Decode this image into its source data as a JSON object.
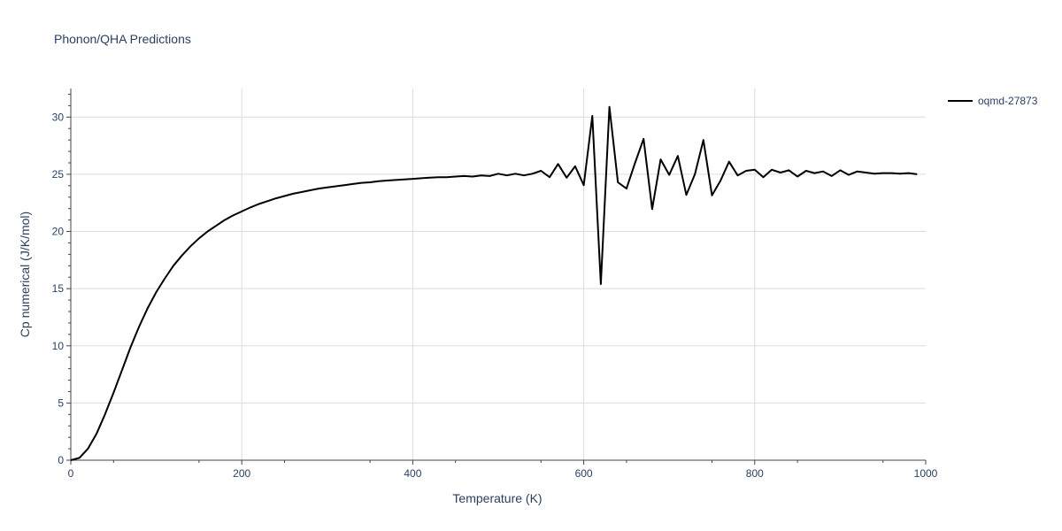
{
  "chart_data": {
    "type": "line",
    "title": "Phonon/QHA Predictions",
    "xlabel": "Temperature (K)",
    "ylabel": "Cp numerical (J/K/mol)",
    "xlim": [
      0,
      1000
    ],
    "ylim": [
      0,
      32.5
    ],
    "x_ticks": [
      0,
      200,
      400,
      600,
      800,
      1000
    ],
    "y_ticks": [
      0,
      5,
      10,
      15,
      20,
      25,
      30
    ],
    "grid": true,
    "legend_position": "top-right",
    "series": [
      {
        "name": "oqmd-27873",
        "color": "#000000",
        "x": [
          0,
          10,
          20,
          30,
          40,
          50,
          60,
          70,
          80,
          90,
          100,
          110,
          120,
          130,
          140,
          150,
          160,
          170,
          180,
          190,
          200,
          210,
          220,
          230,
          240,
          250,
          260,
          270,
          280,
          290,
          300,
          310,
          320,
          330,
          340,
          350,
          360,
          370,
          380,
          390,
          400,
          410,
          420,
          430,
          440,
          450,
          460,
          470,
          480,
          490,
          500,
          510,
          520,
          530,
          540,
          550,
          560,
          570,
          580,
          590,
          600,
          610,
          620,
          630,
          640,
          650,
          660,
          670,
          680,
          690,
          700,
          710,
          720,
          730,
          740,
          750,
          760,
          770,
          780,
          790,
          800,
          810,
          820,
          830,
          840,
          850,
          860,
          870,
          880,
          890,
          900,
          910,
          920,
          930,
          940,
          950,
          960,
          970,
          980,
          990
        ],
        "y": [
          0,
          0.2,
          1.0,
          2.3,
          4.0,
          5.9,
          7.9,
          9.9,
          11.7,
          13.3,
          14.7,
          15.9,
          17.0,
          17.9,
          18.7,
          19.4,
          20.0,
          20.5,
          21.0,
          21.4,
          21.75,
          22.1,
          22.4,
          22.65,
          22.9,
          23.1,
          23.3,
          23.45,
          23.6,
          23.75,
          23.85,
          23.95,
          24.05,
          24.15,
          24.25,
          24.3,
          24.4,
          24.45,
          24.5,
          24.55,
          24.6,
          24.65,
          24.7,
          24.75,
          24.75,
          24.8,
          24.85,
          24.8,
          24.9,
          24.85,
          25.05,
          24.9,
          25.05,
          24.9,
          25.05,
          25.3,
          24.75,
          25.9,
          24.7,
          25.7,
          24.05,
          30.1,
          15.4,
          30.9,
          24.3,
          23.75,
          26.0,
          28.1,
          21.95,
          26.3,
          24.95,
          26.6,
          23.2,
          25.0,
          28.0,
          23.15,
          24.45,
          26.1,
          24.9,
          25.3,
          25.4,
          24.75,
          25.4,
          25.15,
          25.35,
          24.8,
          25.3,
          25.1,
          25.25,
          24.85,
          25.35,
          24.95,
          25.25,
          25.15,
          25.05,
          25.1,
          25.1,
          25.05,
          25.1,
          25.0
        ]
      }
    ]
  }
}
